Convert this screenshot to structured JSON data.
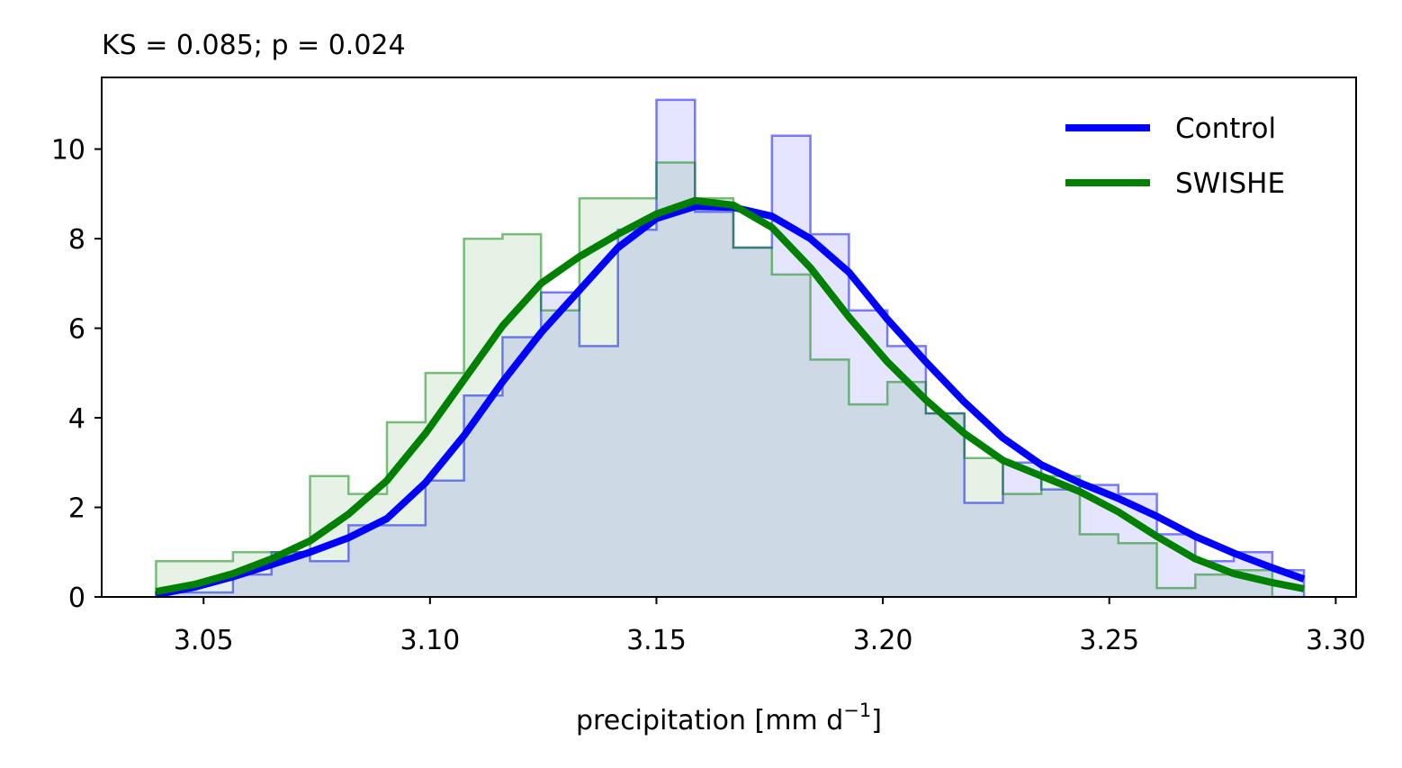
{
  "chart_data": {
    "type": "histogram",
    "title": "KS = 0.085; p = 0.024",
    "xlabel": "precipitation [mm d",
    "xlabel_sup": "−1",
    "xlabel_end": "]",
    "ylabel": "",
    "xlim": [
      3.0275,
      3.3045
    ],
    "ylim": [
      0,
      11.6
    ],
    "grid": false,
    "legend_position": "top-right",
    "xticks": [
      3.05,
      3.1,
      3.15,
      3.2,
      3.25,
      3.3
    ],
    "xtick_labels": [
      "3.05",
      "3.10",
      "3.15",
      "3.20",
      "3.25",
      "3.30"
    ],
    "yticks": [
      0,
      2,
      4,
      6,
      8,
      10
    ],
    "ytick_labels": [
      "0",
      "2",
      "4",
      "6",
      "8",
      "10"
    ],
    "bin_edges": [
      3.0395,
      3.0565,
      3.065,
      3.0735,
      3.082,
      3.0905,
      3.099,
      3.1075,
      3.116,
      3.1245,
      3.133,
      3.1415,
      3.15,
      3.1585,
      3.167,
      3.1755,
      3.184,
      3.1925,
      3.201,
      3.2095,
      3.218,
      3.2265,
      3.235,
      3.2435,
      3.252,
      3.2605,
      3.269,
      3.2775,
      3.286,
      3.293
    ],
    "series": [
      {
        "name": "Control",
        "color": "#0000ff",
        "fill": "#e6e6ff",
        "hist": [
          0.1,
          0.5,
          1.0,
          0.8,
          1.6,
          1.6,
          2.6,
          4.5,
          5.8,
          6.8,
          5.6,
          8.2,
          11.1,
          8.6,
          7.8,
          10.3,
          8.1,
          6.4,
          5.6,
          4.1,
          2.1,
          3.0,
          2.4,
          2.5,
          2.3,
          1.4,
          0.8,
          1.0,
          0.6
        ],
        "kde_x": [
          3.0395,
          3.048,
          3.0565,
          3.065,
          3.0735,
          3.082,
          3.0905,
          3.099,
          3.1075,
          3.116,
          3.1245,
          3.133,
          3.1415,
          3.15,
          3.1585,
          3.167,
          3.1755,
          3.184,
          3.1925,
          3.201,
          3.2095,
          3.218,
          3.2265,
          3.235,
          3.2435,
          3.252,
          3.2605,
          3.269,
          3.2775,
          3.286,
          3.293
        ],
        "kde_y": [
          0.05,
          0.22,
          0.45,
          0.72,
          1.0,
          1.32,
          1.75,
          2.55,
          3.6,
          4.8,
          5.9,
          6.85,
          7.8,
          8.45,
          8.72,
          8.7,
          8.5,
          8.0,
          7.25,
          6.2,
          5.25,
          4.35,
          3.55,
          2.95,
          2.55,
          2.2,
          1.8,
          1.35,
          0.98,
          0.65,
          0.4
        ]
      },
      {
        "name": "SWISHE",
        "color": "#008000",
        "fill": "#e6f2e6",
        "hist": [
          0.8,
          1.0,
          1.0,
          2.7,
          2.3,
          3.9,
          5.0,
          8.0,
          8.1,
          6.4,
          8.9,
          8.9,
          9.7,
          8.9,
          7.8,
          7.2,
          5.3,
          4.3,
          4.8,
          4.1,
          3.1,
          2.3,
          2.7,
          1.4,
          1.2,
          0.2,
          0.5,
          0.6,
          0.0
        ],
        "kde_x": [
          3.0395,
          3.048,
          3.0565,
          3.065,
          3.0735,
          3.082,
          3.0905,
          3.099,
          3.1075,
          3.116,
          3.1245,
          3.133,
          3.1415,
          3.15,
          3.1585,
          3.167,
          3.1755,
          3.184,
          3.1925,
          3.201,
          3.2095,
          3.218,
          3.2265,
          3.235,
          3.2435,
          3.252,
          3.2605,
          3.269,
          3.2775,
          3.286,
          3.293
        ],
        "kde_y": [
          0.12,
          0.28,
          0.52,
          0.85,
          1.25,
          1.85,
          2.6,
          3.65,
          4.85,
          6.05,
          7.0,
          7.6,
          8.1,
          8.55,
          8.85,
          8.75,
          8.25,
          7.35,
          6.25,
          5.25,
          4.4,
          3.65,
          3.05,
          2.7,
          2.35,
          1.9,
          1.35,
          0.85,
          0.52,
          0.32,
          0.18
        ]
      }
    ]
  }
}
